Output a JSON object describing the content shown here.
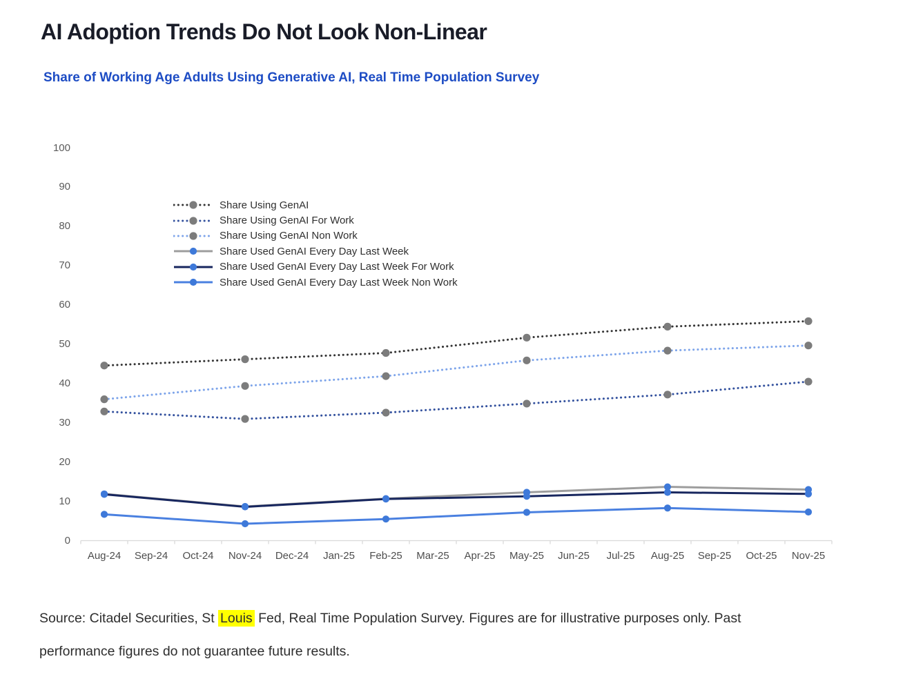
{
  "header": {
    "title": "AI Adoption Trends Do Not Look Non-Linear",
    "subtitle": "Share of Working Age Adults Using Generative AI, Real Time Population Survey"
  },
  "source": {
    "line1_prefix": "Source: Citadel Securities, St ",
    "line1_highlight": "Louis",
    "line1_suffix": " Fed, Real Time Population Survey. Figures are for illustrative purposes only. Past",
    "line2": "performance figures do not guarantee future results.",
    "highlight_color": "#ffff00"
  },
  "chart_data": {
    "type": "line",
    "title": "Share of Working Age Adults Using Generative AI, Real Time Population Survey",
    "xlabel": "",
    "ylabel": "",
    "ylim": [
      0,
      100
    ],
    "y_ticks": [
      100,
      90,
      80,
      70,
      60,
      50,
      40,
      30,
      20,
      10,
      0
    ],
    "grid": false,
    "legend_position": "inside-top-left",
    "axis_color": "#d9d9d9",
    "x_categories": [
      "Aug-24",
      "Sep-24",
      "Oct-24",
      "Nov-24",
      "Dec-24",
      "Jan-25",
      "Feb-25",
      "Mar-25",
      "Apr-25",
      "May-25",
      "Jun-25",
      "Jul-25",
      "Aug-25",
      "Sep-25",
      "Oct-25",
      "Nov-25"
    ],
    "x_data_points": [
      "Aug-24",
      "Nov-24",
      "Feb-25",
      "May-25",
      "Aug-25",
      "Nov-25"
    ],
    "x_data_indices": [
      0,
      3,
      6,
      9,
      12,
      15
    ],
    "series": [
      {
        "name": "Share Using GenAI",
        "line_style": "dotted",
        "line_color": "#343434",
        "marker_color": "#7c7c7c",
        "values": [
          44.6,
          46.2,
          47.8,
          51.7,
          54.5,
          55.9
        ]
      },
      {
        "name": "Share Using GenAI For Work",
        "line_style": "dotted",
        "line_color": "#33519e",
        "marker_color": "#7c7c7c",
        "values": [
          32.9,
          31.0,
          32.6,
          34.9,
          37.2,
          40.5
        ]
      },
      {
        "name": "Share Using GenAI Non Work",
        "line_style": "dotted",
        "line_color": "#7da4ea",
        "marker_color": "#7c7c7c",
        "values": [
          36.0,
          39.4,
          41.9,
          45.9,
          48.4,
          49.7
        ]
      },
      {
        "name": "Share Used GenAI Every Day Last Week",
        "line_style": "solid",
        "line_color": "#9d9d9d",
        "marker_color": "#3e79d9",
        "values": [
          11.9,
          8.7,
          10.7,
          12.3,
          13.7,
          13.0
        ]
      },
      {
        "name": "Share Used GenAI Every Day Last Week For Work",
        "line_style": "solid",
        "line_color": "#17265e",
        "marker_color": "#3e79d9",
        "values": [
          11.8,
          8.6,
          10.6,
          11.3,
          12.3,
          11.9
        ]
      },
      {
        "name": "Share Used GenAI Every Day Last Week Non Work",
        "line_style": "solid",
        "line_color": "#4a80e0",
        "marker_color": "#3e79d9",
        "values": [
          6.7,
          4.3,
          5.5,
          7.2,
          8.3,
          7.3
        ]
      }
    ]
  }
}
